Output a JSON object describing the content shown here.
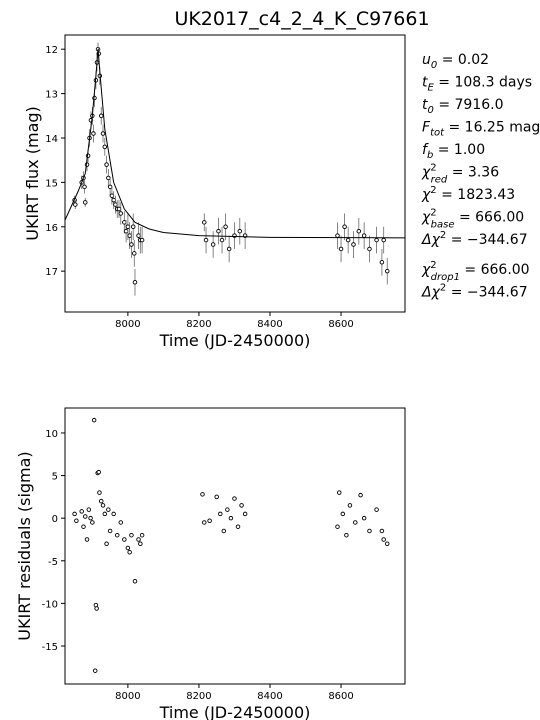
{
  "title": "UK2017_c4_2_4_K_C97661",
  "stats": [
    {
      "name": "u",
      "sub": "0",
      "rest": " = 0.02"
    },
    {
      "name": "t",
      "sub": "E",
      "rest": " = 108.3 days"
    },
    {
      "name": "t",
      "sub": "0",
      "rest": " = 7916.0"
    },
    {
      "name": "F",
      "sub": "tot",
      "rest": " = 16.25 mag"
    },
    {
      "name": "f",
      "sub": "b",
      "rest": " = 1.00"
    },
    {
      "name": "χ",
      "sup": "2",
      "sub": "red",
      "rest": " = 3.36"
    },
    {
      "name": "χ",
      "sup": "2",
      "rest": " = 1823.43"
    },
    {
      "name": "χ",
      "sup": "2",
      "sub": "base",
      "rest": " = 666.00"
    },
    {
      "name": "Δχ",
      "sup": "2",
      "rest": " = −344.67"
    },
    {
      "name": "χ",
      "sup": "2",
      "sub": "drop1",
      "rest": " = 666.00"
    },
    {
      "name": "Δχ",
      "sup": "2",
      "rest": " = −344.67"
    }
  ],
  "chart_data": [
    {
      "type": "scatter",
      "xlabel": "Time (JD-2450000)",
      "ylabel": "UKIRT flux (mag)",
      "xlim": [
        7823,
        8780
      ],
      "ylim": [
        17.92,
        11.68
      ],
      "xticks": [
        8000,
        8200,
        8400,
        8600
      ],
      "yticks": [
        12,
        13,
        14,
        15,
        16,
        17
      ],
      "series": [
        {
          "color": "#000000",
          "x": [
            7850,
            7852,
            7870,
            7875,
            7878,
            7880,
            7885,
            7888,
            7892,
            7896,
            7900,
            7903,
            7906,
            7910,
            7913,
            7916,
            7918,
            7921,
            7925,
            7930,
            7935,
            7940,
            7945,
            7950,
            7955,
            7960,
            7965,
            7970,
            7975,
            7980,
            7990,
            7995,
            8000,
            8005,
            8010,
            8015,
            8018,
            8020,
            8030,
            8035,
            8040,
            8215,
            8220,
            8240,
            8255,
            8265,
            8275,
            8285,
            8300,
            8315,
            8330,
            8590,
            8600,
            8610,
            8620,
            8635,
            8650,
            8665,
            8680,
            8700,
            8715,
            8720,
            8730
          ],
          "values": [
            15.4,
            15.5,
            15.0,
            14.9,
            15.1,
            15.45,
            14.6,
            14.4,
            14.0,
            13.6,
            13.5,
            13.9,
            13.1,
            12.7,
            12.3,
            12.0,
            12.1,
            12.6,
            13.5,
            13.9,
            14.2,
            14.6,
            14.9,
            15.1,
            15.3,
            15.4,
            15.5,
            15.6,
            15.6,
            15.7,
            15.9,
            16.1,
            16.0,
            16.2,
            16.4,
            16.0,
            16.6,
            17.25,
            16.2,
            16.3,
            16.3,
            15.9,
            16.3,
            16.4,
            16.1,
            16.3,
            16.0,
            16.5,
            16.2,
            16.1,
            16.2,
            16.2,
            16.5,
            16.0,
            16.3,
            16.4,
            16.1,
            16.2,
            16.5,
            16.3,
            16.8,
            16.3,
            17.0
          ],
          "errors": [
            0.1,
            0.1,
            0.15,
            0.15,
            0.15,
            0.1,
            0.15,
            0.15,
            0.2,
            0.2,
            0.2,
            0.2,
            0.2,
            0.2,
            0.2,
            0.15,
            0.15,
            0.2,
            0.2,
            0.2,
            0.2,
            0.2,
            0.2,
            0.2,
            0.2,
            0.2,
            0.2,
            0.2,
            0.2,
            0.25,
            0.25,
            0.25,
            0.3,
            0.3,
            0.3,
            0.3,
            0.3,
            0.3,
            0.3,
            0.3,
            0.3,
            0.2,
            0.3,
            0.3,
            0.3,
            0.3,
            0.3,
            0.3,
            0.3,
            0.3,
            0.3,
            0.3,
            0.3,
            0.3,
            0.3,
            0.3,
            0.3,
            0.3,
            0.3,
            0.3,
            0.3,
            0.3,
            0.3
          ]
        },
        {
          "type": "line",
          "color": "#000000",
          "x": [
            7823,
            7860,
            7880,
            7900,
            7910,
            7916,
            7922,
            7935,
            7960,
            7990,
            8020,
            8060,
            8100,
            8200,
            8400,
            8780
          ],
          "values": [
            15.85,
            15.2,
            14.8,
            13.5,
            12.6,
            12.0,
            12.6,
            13.8,
            15.0,
            15.6,
            15.9,
            16.05,
            16.13,
            16.2,
            16.24,
            16.25
          ]
        }
      ]
    },
    {
      "type": "scatter",
      "xlabel": "Time (JD-2450000)",
      "ylabel": "UKIRT residuals (sigma)",
      "xlim": [
        7823,
        8780
      ],
      "ylim": [
        -19.46,
        12.93
      ],
      "xticks": [
        8000,
        8200,
        8400,
        8600
      ],
      "yticks": [
        -15,
        -10,
        -5,
        0,
        5,
        10
      ],
      "series": [
        {
          "color": "#000000",
          "x": [
            7850,
            7855,
            7870,
            7875,
            7880,
            7885,
            7890,
            7895,
            7900,
            7905,
            7908,
            7910,
            7912,
            7915,
            7918,
            7920,
            7925,
            7930,
            7935,
            7940,
            7945,
            7950,
            7960,
            7970,
            7980,
            7990,
            8000,
            8005,
            8010,
            8020,
            8030,
            8035,
            8040,
            8210,
            8215,
            8230,
            8250,
            8260,
            8270,
            8280,
            8290,
            8300,
            8310,
            8320,
            8330,
            8590,
            8595,
            8605,
            8615,
            8625,
            8640,
            8655,
            8665,
            8680,
            8700,
            8715,
            8720,
            8730
          ],
          "values": [
            0.5,
            -0.3,
            0.8,
            -1,
            0.2,
            -2.5,
            1,
            0,
            -0.5,
            11.5,
            -17.9,
            -10.2,
            -10.6,
            5.3,
            5.4,
            3,
            2,
            1.5,
            0.5,
            -3,
            1,
            -1.5,
            0.5,
            -2,
            -0.5,
            -2.5,
            -3.5,
            -4,
            -2,
            -7.4,
            -2.5,
            -3,
            -2,
            2.8,
            -0.5,
            -0.3,
            2.5,
            0.5,
            -1.5,
            1,
            0,
            2.3,
            -1,
            1.5,
            0.5,
            -1,
            3,
            0.5,
            -2,
            1.5,
            -0.5,
            2.7,
            0,
            -1.5,
            1,
            -1.5,
            -2.5,
            -3
          ]
        }
      ]
    }
  ]
}
